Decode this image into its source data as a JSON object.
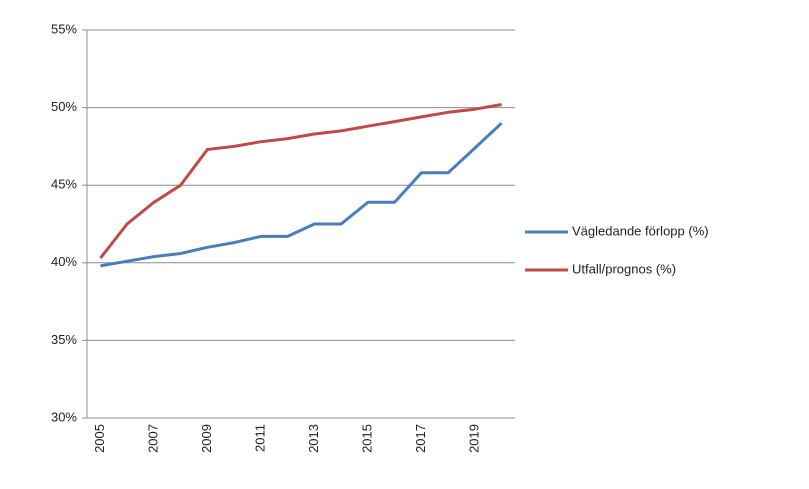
{
  "chart_data": {
    "type": "line",
    "categories": [
      "2005",
      null,
      "2007",
      null,
      "2009",
      null,
      "2011",
      null,
      "2013",
      null,
      "2015",
      null,
      "2017",
      null,
      "2019",
      null
    ],
    "series": [
      {
        "name": "Vägledande förlopp (%)",
        "color": "#4a7ebb",
        "values": [
          39.8,
          40.1,
          40.4,
          40.6,
          41.0,
          41.3,
          41.7,
          41.7,
          42.5,
          42.5,
          43.9,
          43.9,
          45.8,
          45.8,
          47.4,
          49.0
        ]
      },
      {
        "name": "Utfall/prognos (%)",
        "color": "#be4b48",
        "values": [
          40.3,
          42.5,
          43.9,
          45.0,
          47.3,
          47.5,
          47.8,
          48.0,
          48.3,
          48.5,
          48.8,
          49.1,
          49.4,
          49.7,
          49.9,
          50.2
        ]
      }
    ],
    "ylim": [
      30,
      55
    ],
    "yticks": [
      {
        "value": 30,
        "label": "30%"
      },
      {
        "value": 35,
        "label": "35%"
      },
      {
        "value": 40,
        "label": "40%"
      },
      {
        "value": 45,
        "label": "45%"
      },
      {
        "value": 50,
        "label": "50%"
      },
      {
        "value": 55,
        "label": "55%"
      }
    ],
    "grid": true,
    "legend": "right"
  }
}
